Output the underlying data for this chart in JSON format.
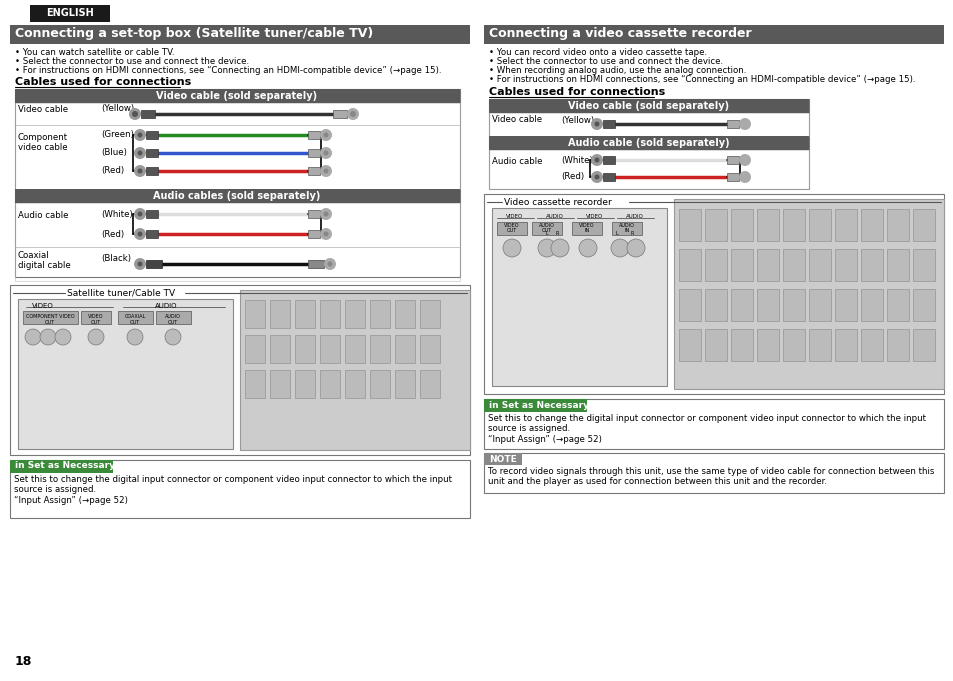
{
  "title_left": "Connecting a set-top box (Satellite tuner/cable TV)",
  "title_right": "Connecting a video cassette recorder",
  "title_bg": "#595959",
  "english_bg": "#1a1a1a",
  "english_text": "ENGLISH",
  "page_number": "18",
  "left_bullets": [
    "You can watch satellite or cable TV.",
    "Select the connector to use and connect the device.",
    "For instructions on HDMI connections, see “Connecting an HDMI-compatible device” (→page 15)."
  ],
  "right_bullets": [
    "You can record video onto a video cassette tape.",
    "Select the connector to use and connect the device.",
    "When recording analog audio, use the analog connection.",
    "For instructions on HDMI connections, see “Connecting an HDMI-compatible device” (→page 15)."
  ],
  "cables_title": "Cables used for connections",
  "video_cable_header": "Video cable (sold separately)",
  "audio_cable_header": "Audio cables (sold separately)",
  "video_cable_header2": "Video cable (sold separately)",
  "audio_cable_header2": "Audio cable (sold separately)",
  "sat_box_label": "Satellite tuner/Cable TV",
  "vcr_label": "Video cassette recorder",
  "set_as_necessary_label": "in Set as Necessary",
  "set_as_necessary_text_left": "Set this to change the digital input connector or component video input connector to which the input\nsource is assigned.\n“Input Assign” (→page 52)",
  "set_as_necessary_text_right": "Set this to change the digital input connector or component video input connector to which the input\nsource is assigned.\n“Input Assign” (→page 52)",
  "note_label": "NOTE",
  "note_text": "To record video signals through this unit, use the same type of video cable for connection between this\nunit and the player as used for connection between this unit and the recorder.",
  "header_color": "#595959",
  "bg_color": "#ffffff",
  "set_necessary_bg": "#3a8a3a",
  "note_bg": "#888888",
  "left_table_rows": [
    {
      "label1": "Video cable",
      "label2": "(Yellow)",
      "cable_color": "#1a1a1a",
      "type": "single"
    },
    {
      "label1": "Component",
      "label1b": "video cable",
      "rows": [
        {
          "label2": "(Green)",
          "cable_color": "#228B22"
        },
        {
          "label2": "(Blue)",
          "cable_color": "#3355cc"
        },
        {
          "label2": "(Red)",
          "cable_color": "#cc2222"
        }
      ],
      "type": "multi"
    }
  ],
  "left_audio_rows": [
    {
      "label1": "Audio cable",
      "rows": [
        {
          "label2": "(White)",
          "cable_color": "#cccccc"
        },
        {
          "label2": "(Red)",
          "cable_color": "#cc2222"
        }
      ],
      "type": "multi"
    },
    {
      "label1": "Coaxial",
      "label1b": "digital cable",
      "label2": "(Black)",
      "cable_color": "#111111",
      "type": "single_coax"
    }
  ],
  "right_table_rows": [
    {
      "label1": "Video cable",
      "label2": "(Yellow)",
      "cable_color": "#1a1a1a",
      "type": "single"
    }
  ],
  "right_audio_rows": [
    {
      "label1": "Audio cable",
      "rows": [
        {
          "label2": "(White)",
          "cable_color": "#cccccc"
        },
        {
          "label2": "(Red)",
          "cable_color": "#cc2222"
        }
      ],
      "type": "multi"
    }
  ]
}
